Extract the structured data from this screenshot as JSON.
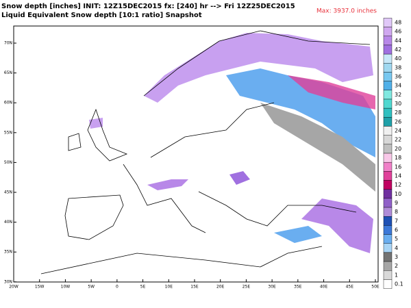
{
  "header": {
    "line1": "Snow depth [inches] INIT: 12Z15DEC2015 fx: [240] hr --> Fri 12Z25DEC2015",
    "line2": "Liquid Equivalent Snow depth [10:1 ratio] Snapshot",
    "max": "Max: 3937.0 inches"
  },
  "map": {
    "lat_labels": [
      "70N",
      "65N",
      "60N",
      "55N",
      "50N",
      "45N",
      "40N",
      "35N",
      "30N"
    ],
    "lon_labels": [
      "20W",
      "15W",
      "10W",
      "5W",
      "0",
      "5E",
      "10E",
      "15E",
      "20E",
      "25E",
      "30E",
      "35E",
      "40E",
      "45E",
      "50E"
    ]
  },
  "colorbar": {
    "levels": [
      48,
      46,
      44,
      42,
      40,
      38,
      36,
      34,
      32,
      30,
      28,
      26,
      24,
      22,
      20,
      18,
      16,
      14,
      12,
      10,
      9,
      8,
      7,
      6,
      5,
      4,
      3,
      2,
      1,
      0.1
    ],
    "colors": [
      "#e0c8f8",
      "#d0a8f0",
      "#b888e8",
      "#a070e0",
      "#c8e8f8",
      "#a0d8f0",
      "#78c8f0",
      "#50b0e8",
      "#80e8e0",
      "#50d8d0",
      "#30c0c0",
      "#20a0a8",
      "#f0f0f0",
      "#d8d8d8",
      "#c0c0c0",
      "#f8c8e8",
      "#f080c8",
      "#e0409a",
      "#c00060",
      "#7030a0",
      "#9060c8",
      "#b08cd8",
      "#1e50b4",
      "#3c78d8",
      "#6aaef0",
      "#a8d4f5",
      "#737373",
      "#a6a6a6",
      "#d9d9d9",
      "#ffffff"
    ]
  }
}
